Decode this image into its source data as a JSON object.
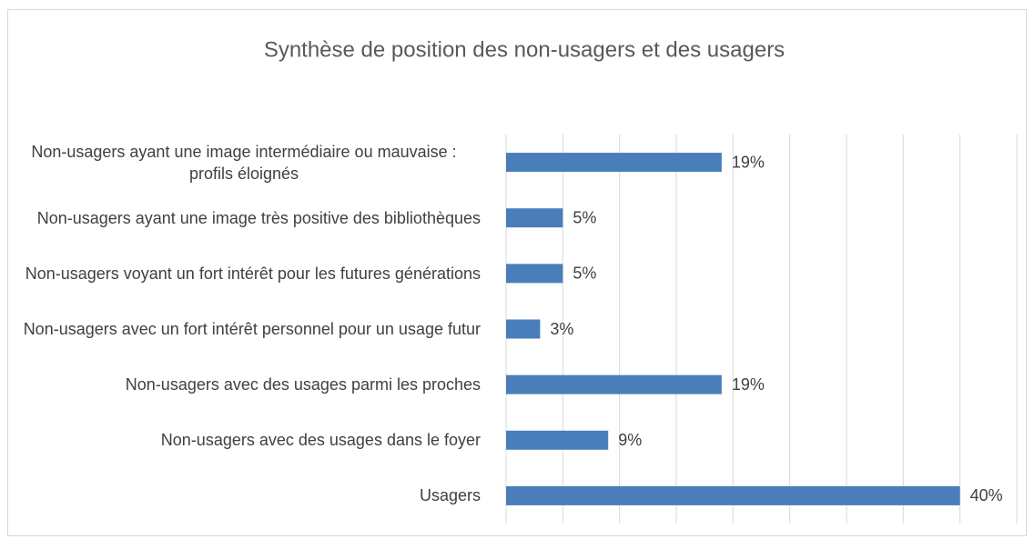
{
  "chart_data": {
    "type": "bar",
    "orientation": "horizontal",
    "title": "Synthèse de position des non-usagers et des usagers",
    "categories": [
      "Non-usagers ayant une image intermédiaire ou mauvaise : profils éloignés",
      "Non-usagers ayant une image très positive des bibliothèques",
      "Non-usagers voyant un fort intérêt pour les futures générations",
      "Non-usagers avec un fort intérêt personnel pour un usage futur",
      "Non-usagers avec des usages parmi les proches",
      "Non-usagers avec des usages dans le foyer",
      "Usagers"
    ],
    "values": [
      19,
      5,
      5,
      3,
      19,
      9,
      40
    ],
    "value_labels": [
      "19%",
      "5%",
      "5%",
      "3%",
      "19%",
      "9%",
      "40%"
    ],
    "color": "#4a7ebb",
    "xlim": [
      0,
      45
    ],
    "xticks": [
      0,
      5,
      10,
      15,
      20,
      25,
      30,
      35,
      40,
      45
    ],
    "grid": true
  }
}
